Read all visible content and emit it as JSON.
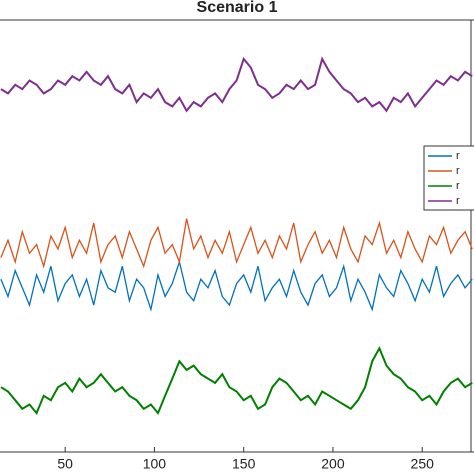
{
  "chart_data": {
    "type": "line",
    "title": "Scenario 1",
    "x": [
      14,
      18,
      22,
      26,
      30,
      34,
      38,
      42,
      46,
      50,
      54,
      58,
      62,
      66,
      70,
      74,
      78,
      82,
      86,
      90,
      94,
      98,
      102,
      106,
      110,
      114,
      118,
      122,
      126,
      130,
      134,
      138,
      142,
      146,
      150,
      154,
      158,
      162,
      166,
      170,
      174,
      178,
      182,
      186,
      190,
      194,
      198,
      202,
      206,
      210,
      214,
      218,
      222,
      226,
      230,
      234,
      238,
      242,
      246,
      250,
      254,
      258,
      262,
      266,
      270,
      274,
      278
    ],
    "xlim": [
      13.5,
      279
    ],
    "xticks": [
      50,
      100,
      150,
      200,
      250
    ],
    "ylim": [
      0,
      100
    ],
    "legend": "east",
    "series": [
      {
        "name": "r",
        "color": "#0072bd",
        "values": [
          40,
          36,
          42,
          38,
          34,
          41,
          37,
          43,
          35,
          39,
          41,
          36,
          40,
          34,
          42,
          38,
          37,
          43,
          35,
          40,
          38,
          33,
          41,
          36,
          39,
          44,
          37,
          35,
          40,
          38,
          42,
          36,
          34,
          39,
          41,
          37,
          43,
          35,
          38,
          40,
          36,
          42,
          37,
          34,
          39,
          41,
          36,
          38,
          43,
          35,
          40,
          37,
          33,
          41,
          38,
          36,
          42,
          39,
          35,
          40,
          37,
          43,
          36,
          39,
          41,
          38,
          40
        ]
      },
      {
        "name": "r",
        "color": "#d95319",
        "values": [
          45,
          49,
          44,
          51,
          46,
          48,
          43,
          50,
          47,
          52,
          45,
          49,
          46,
          53,
          44,
          48,
          50,
          45,
          51,
          47,
          43,
          49,
          52,
          46,
          48,
          44,
          54,
          47,
          50,
          45,
          49,
          46,
          51,
          44,
          48,
          52,
          46,
          49,
          45,
          50,
          47,
          53,
          44,
          48,
          51,
          46,
          49,
          45,
          52,
          47,
          44,
          50,
          48,
          53,
          46,
          49,
          45,
          51,
          47,
          44,
          50,
          48,
          52,
          46,
          49,
          51,
          47
        ]
      },
      {
        "name": "r",
        "color": "#008000",
        "values": [
          15,
          14,
          12,
          10,
          11,
          9,
          13,
          12,
          15,
          16,
          14,
          17,
          15,
          16,
          18,
          16,
          14,
          15,
          13,
          12,
          10,
          11,
          9,
          13,
          17,
          21,
          19,
          20,
          18,
          17,
          16,
          18,
          15,
          14,
          12,
          13,
          10,
          11,
          15,
          17,
          16,
          14,
          12,
          13,
          11,
          14,
          13,
          12,
          11,
          10,
          12,
          15,
          21,
          24,
          20,
          18,
          17,
          15,
          14,
          12,
          13,
          11,
          14,
          16,
          17,
          15,
          16
        ]
      },
      {
        "name": "r",
        "color": "#7e2f8e",
        "values": [
          84,
          83,
          85,
          84,
          86,
          85,
          83,
          84,
          86,
          85,
          87,
          86,
          88,
          86,
          85,
          87,
          84,
          83,
          85,
          81,
          83,
          82,
          84,
          81,
          80,
          82,
          79,
          81,
          80,
          82,
          83,
          81,
          84,
          86,
          91,
          89,
          85,
          84,
          82,
          83,
          85,
          84,
          86,
          84,
          85,
          91,
          88,
          86,
          84,
          83,
          81,
          82,
          80,
          81,
          79,
          82,
          81,
          83,
          80,
          82,
          84,
          86,
          85,
          87,
          86,
          88,
          87
        ]
      }
    ]
  }
}
